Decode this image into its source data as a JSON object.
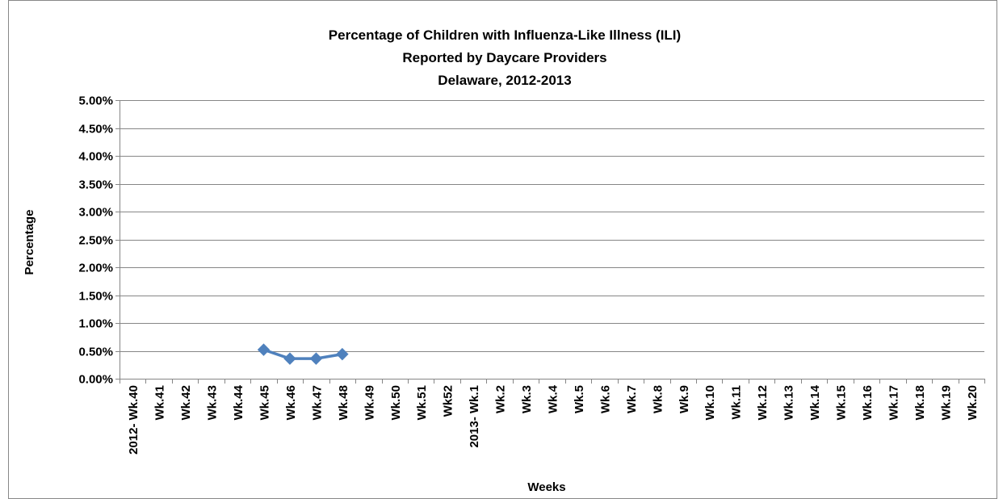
{
  "chart_data": {
    "type": "line",
    "title_lines": [
      "Percentage of Children with Influenza-Like Illness (ILI)",
      "Reported by Daycare Providers",
      "Delaware, 2012-2013"
    ],
    "xlabel": "Weeks",
    "ylabel": "Percentage",
    "ylim": [
      0,
      5
    ],
    "y_ticks": [
      "0.00%",
      "0.50%",
      "1.00%",
      "1.50%",
      "2.00%",
      "2.50%",
      "3.00%",
      "3.50%",
      "4.00%",
      "4.50%",
      "5.00%"
    ],
    "grid": true,
    "legend": "none",
    "categories": [
      "2012- Wk.40",
      "Wk.41",
      "Wk.42",
      "Wk.43",
      "Wk.44",
      "Wk.45",
      "Wk.46",
      "Wk.47",
      "Wk.48",
      "Wk.49",
      "Wk.50",
      "Wk.51",
      "Wk52",
      "2013- Wk.1",
      "Wk.2",
      "Wk.3",
      "Wk.4",
      "Wk.5",
      "Wk.6",
      "Wk.7",
      "Wk.8",
      "Wk.9",
      "Wk.10",
      "Wk.11",
      "Wk.12",
      "Wk.13",
      "Wk.14",
      "Wk.15",
      "Wk.16",
      "Wk.17",
      "Wk.18",
      "Wk.19",
      "Wk.20"
    ],
    "series": [
      {
        "color": "#4f81bd",
        "marker": "diamond",
        "values": [
          null,
          null,
          null,
          null,
          null,
          0.52,
          0.36,
          0.36,
          0.44,
          null,
          null,
          null,
          null,
          null,
          null,
          null,
          null,
          null,
          null,
          null,
          null,
          null,
          null,
          null,
          null,
          null,
          null,
          null,
          null,
          null,
          null,
          null,
          null
        ]
      }
    ]
  }
}
